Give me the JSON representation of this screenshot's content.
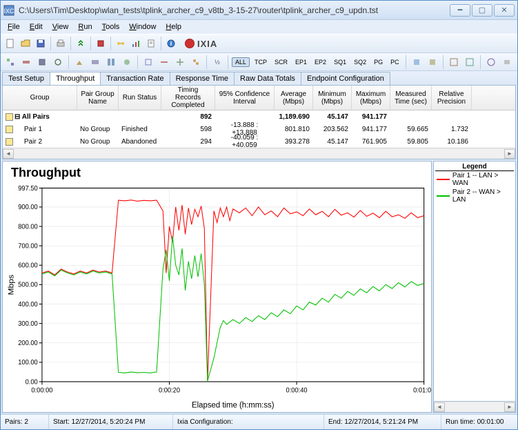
{
  "window": {
    "title": "C:\\Users\\Tim\\Desktop\\wlan_tests\\tplink_archer_c9_v8tb_3-15-27\\router\\tplink_archer_c9_updn.tst"
  },
  "menu": {
    "file": "File",
    "edit": "Edit",
    "view": "View",
    "run": "Run",
    "tools": "Tools",
    "window": "Window",
    "help": "Help"
  },
  "toolbar2": {
    "all": "ALL",
    "tcp": "TCP",
    "scr": "SCR",
    "ep1": "EP1",
    "ep2": "EP2",
    "sq1": "SQ1",
    "sq2": "SQ2",
    "pg": "PG",
    "pc": "PC"
  },
  "tabs": {
    "test_setup": "Test Setup",
    "throughput": "Throughput",
    "transaction_rate": "Transaction Rate",
    "response_time": "Response Time",
    "raw_data_totals": "Raw Data Totals",
    "endpoint_config": "Endpoint Configuration"
  },
  "grid": {
    "headers": {
      "group": "Group",
      "pair_group": "Pair Group Name",
      "run_status": "Run Status",
      "timing": "Timing Records Completed",
      "conf": "95% Confidence Interval",
      "avg": "Average (Mbps)",
      "min": "Minimum (Mbps)",
      "max": "Maximum (Mbps)",
      "meas": "Measured Time (sec)",
      "prec": "Relative Precision"
    },
    "rows": [
      {
        "icon": true,
        "group": "All Pairs",
        "pair": "",
        "run": "",
        "timing": "892",
        "conf": "",
        "avg": "1,189.690",
        "min": "45.147",
        "max": "941.177",
        "meas": "",
        "prec": "",
        "bold": true
      },
      {
        "icon": true,
        "group": "Pair 1",
        "pair": "No Group",
        "run": "Finished",
        "timing": "598",
        "conf": "-13.888 : +13.888",
        "avg": "801.810",
        "min": "203.562",
        "max": "941.177",
        "meas": "59.665",
        "prec": "1.732"
      },
      {
        "icon": true,
        "group": "Pair 2",
        "pair": "No Group",
        "run": "Abandoned",
        "timing": "294",
        "conf": "-40.059 : +40.059",
        "avg": "393.278",
        "min": "45.147",
        "max": "761.905",
        "meas": "59.805",
        "prec": "10.186"
      }
    ]
  },
  "chart": {
    "title": "Throughput",
    "ylabel": "Mbps",
    "xlabel": "Elapsed time (h:mm:ss)",
    "ylim": [
      0,
      997.5
    ],
    "yticks": [
      0,
      100,
      200,
      300,
      400,
      500,
      600,
      700,
      800,
      900,
      997.5
    ],
    "ytick_labels": [
      "0.00",
      "100.00",
      "200.00",
      "300.00",
      "400.00",
      "500.00",
      "600.00",
      "700.00",
      "800.00",
      "900.00",
      "997.50"
    ],
    "xticks": [
      0,
      20,
      40,
      60
    ],
    "xtick_labels": [
      "0:00:00",
      "0:00:20",
      "0:00:40",
      "0:01:00"
    ],
    "grid_color": "#e0e0e0",
    "axis_color": "#000000",
    "series": [
      {
        "name": "Pair 1 -- LAN > WAN",
        "color": "#ff0000",
        "data": [
          [
            0,
            560
          ],
          [
            1,
            570
          ],
          [
            2,
            550
          ],
          [
            3,
            580
          ],
          [
            4,
            565
          ],
          [
            5,
            555
          ],
          [
            6,
            570
          ],
          [
            7,
            560
          ],
          [
            8,
            575
          ],
          [
            9,
            565
          ],
          [
            10,
            570
          ],
          [
            11,
            560
          ],
          [
            12,
            935
          ],
          [
            13,
            932
          ],
          [
            14,
            936
          ],
          [
            15,
            930
          ],
          [
            16,
            934
          ],
          [
            17,
            932
          ],
          [
            18,
            935
          ],
          [
            19,
            880
          ],
          [
            19.5,
            560
          ],
          [
            20,
            800
          ],
          [
            20.5,
            720
          ],
          [
            21,
            900
          ],
          [
            21.5,
            780
          ],
          [
            22,
            910
          ],
          [
            22.5,
            760
          ],
          [
            23,
            895
          ],
          [
            23.5,
            810
          ],
          [
            24,
            888
          ],
          [
            24.5,
            850
          ],
          [
            25,
            905
          ],
          [
            25.5,
            790
          ],
          [
            26,
            4
          ],
          [
            27,
            880
          ],
          [
            27.5,
            820
          ],
          [
            28,
            895
          ],
          [
            28.5,
            850
          ],
          [
            29,
            900
          ],
          [
            29.5,
            830
          ],
          [
            30,
            890
          ],
          [
            31,
            870
          ],
          [
            32,
            895
          ],
          [
            33,
            855
          ],
          [
            34,
            900
          ],
          [
            35,
            860
          ],
          [
            36,
            880
          ],
          [
            37,
            850
          ],
          [
            38,
            895
          ],
          [
            39,
            865
          ],
          [
            40,
            875
          ],
          [
            41,
            855
          ],
          [
            42,
            890
          ],
          [
            43,
            860
          ],
          [
            44,
            878
          ],
          [
            45,
            850
          ],
          [
            46,
            888
          ],
          [
            47,
            858
          ],
          [
            48,
            870
          ],
          [
            49,
            848
          ],
          [
            50,
            882
          ],
          [
            51,
            852
          ],
          [
            52,
            868
          ],
          [
            53,
            845
          ],
          [
            54,
            878
          ],
          [
            55,
            850
          ],
          [
            56,
            860
          ],
          [
            57,
            842
          ],
          [
            58,
            870
          ],
          [
            59,
            845
          ],
          [
            60,
            855
          ]
        ]
      },
      {
        "name": "Pair 2 -- WAN > LAN",
        "color": "#00c000",
        "data": [
          [
            0,
            555
          ],
          [
            1,
            565
          ],
          [
            2,
            545
          ],
          [
            3,
            575
          ],
          [
            4,
            560
          ],
          [
            5,
            550
          ],
          [
            6,
            565
          ],
          [
            7,
            555
          ],
          [
            8,
            570
          ],
          [
            9,
            560
          ],
          [
            10,
            565
          ],
          [
            11,
            555
          ],
          [
            12,
            48
          ],
          [
            13,
            45
          ],
          [
            14,
            50
          ],
          [
            15,
            46
          ],
          [
            16,
            48
          ],
          [
            17,
            45
          ],
          [
            18,
            50
          ],
          [
            19,
            580
          ],
          [
            19.5,
            680
          ],
          [
            20,
            520
          ],
          [
            20.5,
            750
          ],
          [
            21,
            600
          ],
          [
            21.5,
            550
          ],
          [
            22,
            686
          ],
          [
            22.5,
            470
          ],
          [
            23,
            620
          ],
          [
            23.5,
            530
          ],
          [
            24,
            650
          ],
          [
            24.5,
            540
          ],
          [
            25,
            660
          ],
          [
            25.5,
            500
          ],
          [
            26,
            4
          ],
          [
            27,
            122
          ],
          [
            28,
            280
          ],
          [
            28.5,
            315
          ],
          [
            29,
            295
          ],
          [
            30,
            320
          ],
          [
            31,
            300
          ],
          [
            32,
            330
          ],
          [
            33,
            310
          ],
          [
            34,
            340
          ],
          [
            35,
            320
          ],
          [
            36,
            355
          ],
          [
            37,
            335
          ],
          [
            38,
            370
          ],
          [
            39,
            350
          ],
          [
            40,
            390
          ],
          [
            41,
            370
          ],
          [
            42,
            410
          ],
          [
            43,
            395
          ],
          [
            44,
            430
          ],
          [
            45,
            410
          ],
          [
            46,
            450
          ],
          [
            47,
            430
          ],
          [
            48,
            465
          ],
          [
            49,
            445
          ],
          [
            50,
            478
          ],
          [
            51,
            458
          ],
          [
            52,
            490
          ],
          [
            53,
            468
          ],
          [
            54,
            500
          ],
          [
            55,
            480
          ],
          [
            56,
            510
          ],
          [
            57,
            488
          ],
          [
            58,
            516
          ],
          [
            59,
            496
          ],
          [
            60,
            506
          ]
        ]
      }
    ]
  },
  "legend": {
    "title": "Legend",
    "items": [
      {
        "color": "#ff0000",
        "label": "Pair 1 -- LAN > WAN"
      },
      {
        "color": "#00c000",
        "label": "Pair 2 -- WAN > LAN"
      }
    ]
  },
  "status": {
    "pairs": "Pairs: 2",
    "start": "Start: 12/27/2014, 5:20:24 PM",
    "ixia_config": "Ixia Configuration:",
    "end": "End: 12/27/2014, 5:21:24 PM",
    "runtime": "Run time: 00:01:00"
  }
}
